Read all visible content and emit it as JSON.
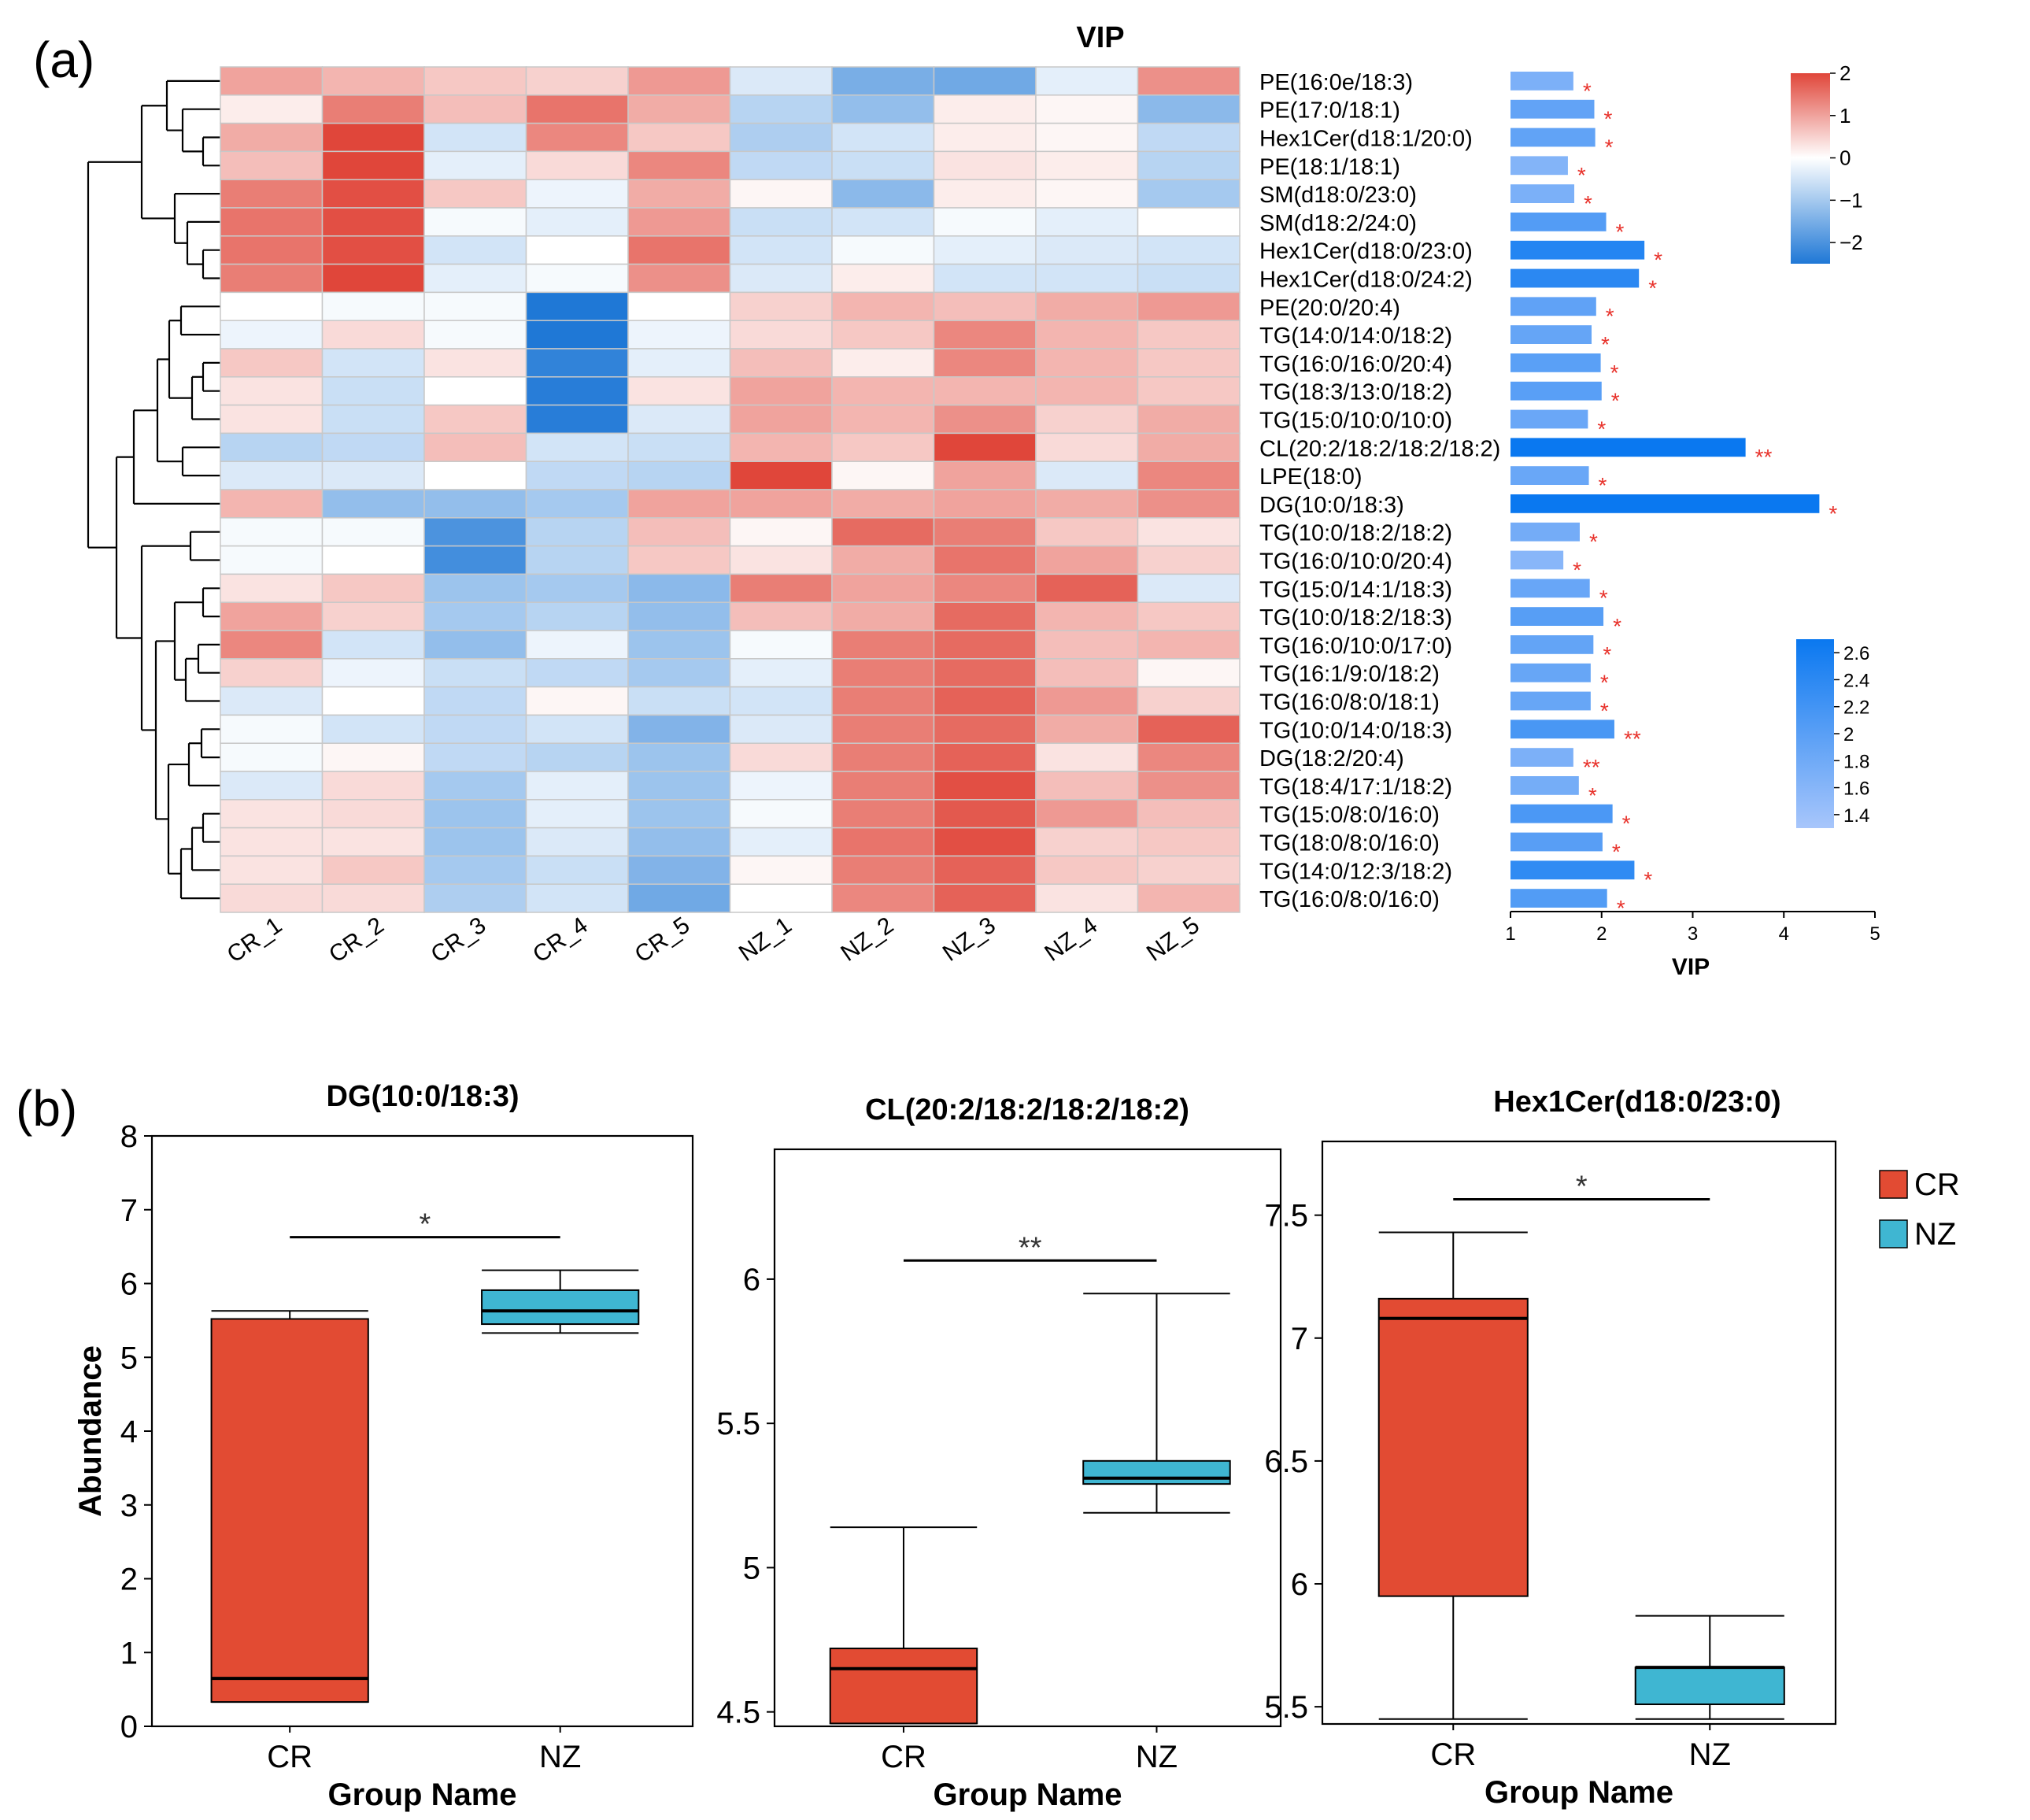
{
  "panel_labels": {
    "a": "(a)",
    "b": "(b)"
  },
  "colors": {
    "heat_low": "#1f78d6",
    "heat_mid": "#ffffff",
    "heat_high": "#e0463a",
    "vip_low": "#a8c6fb",
    "vip_high": "#0a78f0",
    "star": "#e8322b",
    "cr": "#e24b33",
    "nz": "#3fb6d2",
    "grid_line": "#c8c8c8"
  },
  "chart_data": [
    {
      "type": "heatmap",
      "title": "VIP",
      "samples": [
        "CR_1",
        "CR_2",
        "CR_3",
        "CR_4",
        "CR_5",
        "NZ_1",
        "NZ_2",
        "NZ_3",
        "NZ_4",
        "NZ_5"
      ],
      "lipids": [
        "PE(16:0e/18:3)",
        "PE(17:0/18:1)",
        "Hex1Cer(d18:1/20:0)",
        "PE(18:1/18:1)",
        "SM(d18:0/23:0)",
        "SM(d18:2/24:0)",
        "Hex1Cer(d18:0/23:0)",
        "Hex1Cer(d18:0/24:2)",
        "PE(20:0/20:4)",
        "TG(14:0/14:0/18:2)",
        "TG(16:0/16:0/20:4)",
        "TG(18:3/13:0/18:2)",
        "TG(15:0/10:0/10:0)",
        "CL(20:2/18:2/18:2/18:2)",
        "LPE(18:0)",
        "DG(10:0/18:3)",
        "TG(10:0/18:2/18:2)",
        "TG(16:0/10:0/20:4)",
        "TG(15:0/14:1/18:3)",
        "TG(10:0/18:2/18:3)",
        "TG(16:0/10:0/17:0)",
        "TG(16:1/9:0/18:2)",
        "TG(16:0/8:0/18:1)",
        "TG(10:0/14:0/18:3)",
        "DG(18:2/20:4)",
        "TG(18:4/17:1/18:2)",
        "TG(15:0/8:0/16:0)",
        "TG(18:0/8:0/16:0)",
        "TG(14:0/12:3/18:2)",
        "TG(16:0/8:0/16:0)"
      ],
      "values": [
        [
          1.0,
          0.8,
          0.6,
          0.5,
          1.1,
          -0.4,
          -1.5,
          -1.6,
          -0.3,
          1.2
        ],
        [
          0.2,
          1.4,
          0.7,
          1.5,
          0.9,
          -0.8,
          -1.2,
          0.2,
          0.1,
          -1.3
        ],
        [
          0.9,
          2.0,
          -0.5,
          1.3,
          0.6,
          -0.9,
          -0.5,
          0.2,
          0.1,
          -0.7
        ],
        [
          0.7,
          2.0,
          -0.3,
          0.4,
          1.3,
          -0.7,
          -0.6,
          0.3,
          0.2,
          -0.8
        ],
        [
          1.4,
          1.9,
          0.6,
          -0.2,
          0.9,
          0.1,
          -1.3,
          0.2,
          0.1,
          -1.0
        ],
        [
          1.5,
          1.9,
          -0.1,
          -0.3,
          1.1,
          -0.6,
          -0.5,
          -0.1,
          -0.3,
          0.0
        ],
        [
          1.5,
          1.9,
          -0.5,
          0.0,
          1.5,
          -0.5,
          -0.1,
          -0.3,
          -0.4,
          -0.5
        ],
        [
          1.4,
          2.0,
          -0.3,
          -0.1,
          1.2,
          -0.4,
          0.2,
          -0.5,
          -0.5,
          -0.6
        ],
        [
          0.0,
          -0.1,
          -0.1,
          -2.5,
          0.0,
          0.5,
          0.8,
          0.7,
          0.9,
          1.1
        ],
        [
          -0.2,
          0.4,
          -0.1,
          -2.5,
          -0.2,
          0.4,
          0.6,
          1.3,
          0.8,
          0.6
        ],
        [
          0.6,
          -0.5,
          0.3,
          -2.3,
          -0.3,
          0.7,
          0.2,
          1.3,
          0.8,
          0.6
        ],
        [
          0.3,
          -0.6,
          0.0,
          -2.4,
          0.3,
          1.0,
          0.8,
          0.8,
          0.8,
          0.6
        ],
        [
          0.3,
          -0.6,
          0.6,
          -2.4,
          -0.4,
          1.0,
          0.8,
          1.2,
          0.5,
          0.9
        ],
        [
          -0.8,
          -0.7,
          0.7,
          -0.5,
          -0.6,
          0.8,
          0.6,
          2.2,
          0.4,
          0.9
        ],
        [
          -0.4,
          -0.4,
          0.0,
          -0.7,
          -0.8,
          2.0,
          0.1,
          1.0,
          -0.4,
          1.3
        ],
        [
          0.8,
          -1.2,
          -1.2,
          -1.0,
          1.0,
          1.0,
          0.9,
          1.0,
          0.9,
          1.2
        ],
        [
          -0.1,
          -0.1,
          -2.0,
          -0.8,
          0.7,
          0.1,
          1.6,
          1.4,
          0.6,
          0.3
        ],
        [
          -0.1,
          0.0,
          -2.1,
          -0.8,
          0.6,
          0.3,
          0.9,
          1.5,
          1.0,
          0.5
        ],
        [
          0.3,
          0.6,
          -1.1,
          -1.0,
          -1.3,
          1.4,
          1.0,
          1.3,
          1.7,
          -0.4
        ],
        [
          1.0,
          0.5,
          -1.0,
          -0.8,
          -1.2,
          0.7,
          0.9,
          1.6,
          0.8,
          0.6
        ],
        [
          1.3,
          -0.5,
          -1.2,
          -0.2,
          -1.1,
          -0.1,
          1.4,
          1.6,
          0.7,
          0.8
        ],
        [
          0.5,
          -0.2,
          -0.6,
          -0.7,
          -1.0,
          -0.3,
          1.4,
          1.6,
          0.7,
          0.1
        ],
        [
          -0.4,
          0.0,
          -0.7,
          0.1,
          -0.6,
          -0.5,
          1.4,
          1.7,
          1.1,
          0.5
        ],
        [
          -0.1,
          -0.5,
          -0.7,
          -0.5,
          -1.4,
          -0.4,
          1.4,
          1.6,
          0.9,
          1.7
        ],
        [
          -0.1,
          0.1,
          -0.7,
          -0.8,
          -1.1,
          0.4,
          1.4,
          1.7,
          0.3,
          1.3
        ],
        [
          -0.4,
          0.4,
          -1.0,
          -0.3,
          -1.1,
          -0.2,
          1.4,
          1.9,
          0.7,
          1.2
        ],
        [
          0.3,
          0.4,
          -1.1,
          -0.3,
          -1.1,
          -0.1,
          1.4,
          1.8,
          1.1,
          0.7
        ],
        [
          0.3,
          0.3,
          -1.1,
          -0.4,
          -1.2,
          -0.3,
          1.5,
          1.9,
          0.5,
          0.6
        ],
        [
          0.3,
          0.6,
          -1.0,
          -0.6,
          -1.4,
          0.1,
          1.4,
          1.7,
          0.6,
          0.5
        ],
        [
          0.4,
          0.4,
          -0.9,
          -0.5,
          -1.6,
          0.0,
          1.3,
          1.7,
          0.3,
          0.8
        ]
      ],
      "colorbar": {
        "range": [
          -2.5,
          2.0
        ],
        "ticks": [
          "2",
          "1",
          "0",
          "−1",
          "−2"
        ],
        "tick_values": [
          2,
          1,
          0,
          -1,
          -2
        ]
      }
    },
    {
      "type": "bar",
      "orientation": "horizontal",
      "xlabel": "VIP",
      "xlim": [
        1,
        5
      ],
      "xticks": [
        "1",
        "2",
        "3",
        "4",
        "5"
      ],
      "values": [
        1.69,
        1.92,
        1.93,
        1.63,
        1.7,
        2.05,
        2.47,
        2.41,
        1.94,
        1.89,
        1.99,
        2.0,
        1.85,
        3.58,
        1.86,
        4.39,
        1.76,
        1.58,
        1.87,
        2.02,
        1.91,
        1.88,
        1.88,
        2.14,
        1.69,
        1.75,
        2.12,
        2.01,
        2.36,
        2.06
      ],
      "significance": [
        "*",
        "*",
        "*",
        "*",
        "*",
        "*",
        "*",
        "*",
        "*",
        "*",
        "*",
        "*",
        "*",
        "**",
        "*",
        "*",
        "*",
        "*",
        "*",
        "*",
        "*",
        "*",
        "*",
        "**",
        "**",
        "*",
        "*",
        "*",
        "*",
        "*"
      ],
      "colorbar": {
        "range": [
          1.3,
          2.7
        ],
        "ticks": [
          "2.6",
          "2.4",
          "2.2",
          "2",
          "1.8",
          "1.6",
          "1.4"
        ],
        "tick_values": [
          2.6,
          2.4,
          2.2,
          2.0,
          1.8,
          1.6,
          1.4
        ]
      }
    },
    {
      "type": "box",
      "title": "DG(10:0/18:3)",
      "xlabel": "Group Name",
      "ylabel": "Abundance",
      "ylim": [
        0,
        8
      ],
      "yticks": [
        "0",
        "1",
        "2",
        "3",
        "4",
        "5",
        "6",
        "7",
        "8"
      ],
      "tick_values": [
        0,
        1,
        2,
        3,
        4,
        5,
        6,
        7,
        8
      ],
      "groups": [
        {
          "name": "CR",
          "min": 0.33,
          "q1": 0.33,
          "median": 0.65,
          "q3": 5.52,
          "max": 5.63
        },
        {
          "name": "NZ",
          "min": 5.33,
          "q1": 5.45,
          "median": 5.63,
          "q3": 5.91,
          "max": 6.18
        }
      ],
      "significance": "*"
    },
    {
      "type": "box",
      "title": "CL(20:2/18:2/18:2/18:2)",
      "xlabel": "Group Name",
      "ylabel": "",
      "ylim": [
        4.45,
        6.45
      ],
      "yticks": [
        "4.5",
        "5",
        "5.5",
        "6"
      ],
      "tick_values": [
        4.5,
        5,
        5.5,
        6
      ],
      "groups": [
        {
          "name": "CR",
          "min": 4.46,
          "q1": 4.46,
          "median": 4.65,
          "q3": 4.72,
          "max": 5.14
        },
        {
          "name": "NZ",
          "min": 5.19,
          "q1": 5.29,
          "median": 5.31,
          "q3": 5.37,
          "max": 5.95
        }
      ],
      "significance": "**"
    },
    {
      "type": "box",
      "title": "Hex1Cer(d18:0/23:0)",
      "xlabel": "Group Name",
      "ylabel": "",
      "ylim": [
        5.43,
        7.8
      ],
      "yticks": [
        "5.5",
        "6",
        "6.5",
        "7",
        "7.5"
      ],
      "tick_values": [
        5.5,
        6,
        6.5,
        7,
        7.5
      ],
      "groups": [
        {
          "name": "CR",
          "min": 5.45,
          "q1": 5.95,
          "median": 7.08,
          "q3": 7.16,
          "max": 7.43
        },
        {
          "name": "NZ",
          "min": 5.45,
          "q1": 5.51,
          "median": 5.66,
          "q3": 5.66,
          "max": 5.87
        }
      ],
      "significance": "*"
    }
  ],
  "legend": [
    {
      "label": "CR"
    },
    {
      "label": "NZ"
    }
  ]
}
